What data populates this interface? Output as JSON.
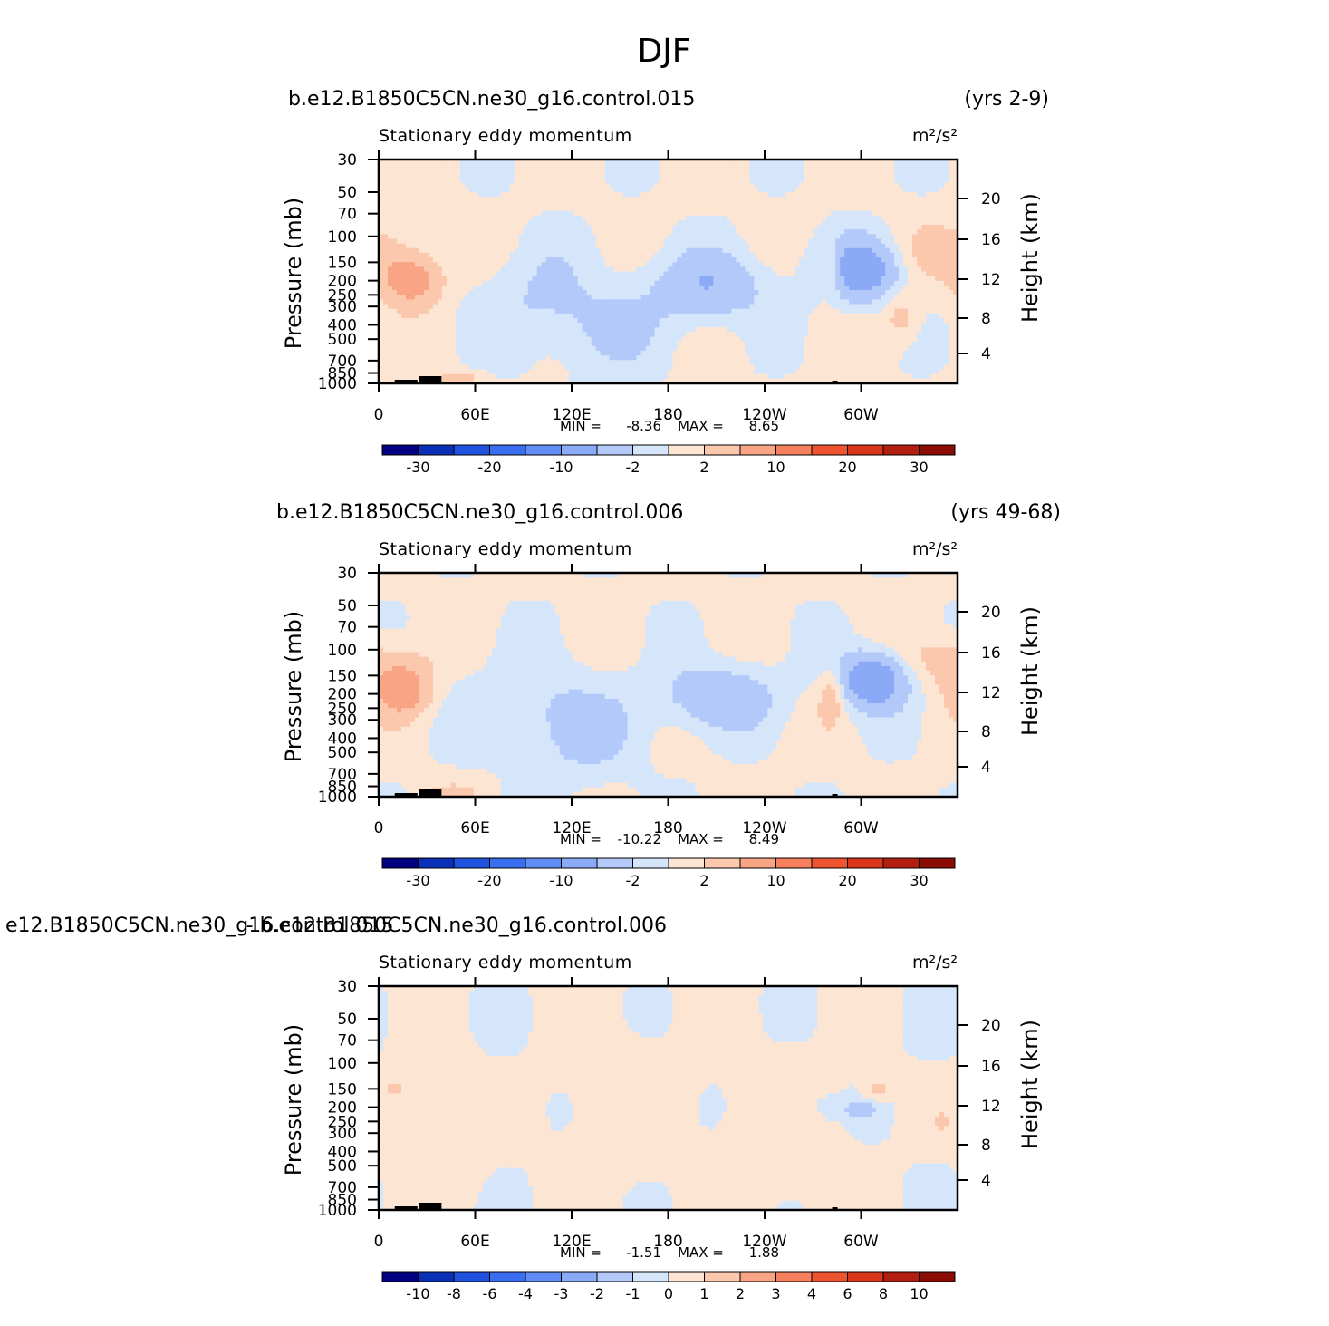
{
  "page": {
    "title": "DJF"
  },
  "palettes": {
    "full": [
      "#000080",
      "#0a2fb8",
      "#1f52df",
      "#3a6ef0",
      "#5f8cf5",
      "#8aaaf7",
      "#b3c9fa",
      "#d6e6fa",
      "#fde5d3",
      "#fbc8ad",
      "#f8a485",
      "#f6805e",
      "#ef5431",
      "#d9361a",
      "#b21e0f",
      "#8a0c05"
    ],
    "pos": [
      "#fde5d3",
      "#f9c2a5",
      "#f4a085"
    ],
    "neg": [
      "#d6e6fa",
      "#b3c9fa",
      "#8aaaf7",
      "#5f8cf5"
    ]
  },
  "chart_data": [
    {
      "type": "heatmap",
      "case_title": "b.e12.B1850C5CN.ne30_g16.control.015",
      "years": "(yrs 2-9)",
      "variable": "Stationary eddy momentum",
      "units": "m²/s²",
      "ylabel": "Pressure (mb)",
      "y2label": "Height (km)",
      "x_ticks": [
        "0",
        "60E",
        "120E",
        "180",
        "120W",
        "60W"
      ],
      "y_ticks": [
        "30",
        "50",
        "70",
        "100",
        "150",
        "200",
        "250",
        "300",
        "400",
        "500",
        "700",
        "850",
        "1000"
      ],
      "y2_ticks": [
        "20",
        "16",
        "12",
        "8",
        "4"
      ],
      "stats": {
        "min_label": "MIN =",
        "min": "-8.36",
        "max_label": "MAX =",
        "max": "8.65"
      },
      "colorbar_labels": [
        "-30",
        "-20",
        "-10",
        "-2",
        "2",
        "10",
        "20",
        "30"
      ],
      "features": [
        {
          "lon": 20,
          "p": 200,
          "v": 7,
          "slon": 13,
          "sp": 0.28
        },
        {
          "lon": 355,
          "p": 130,
          "v": 3,
          "slon": 22,
          "sp": 0.3
        },
        {
          "lon": 205,
          "p": 220,
          "v": -5,
          "slon": 26,
          "sp": 0.38
        },
        {
          "lon": 300,
          "p": 170,
          "v": -8,
          "slon": 18,
          "sp": 0.35
        },
        {
          "lon": 280,
          "p": 170,
          "v": 4,
          "slon": 6,
          "sp": 0.3
        },
        {
          "lon": 100,
          "p": 250,
          "v": -2.2,
          "slon": 28,
          "sp": 0.55
        },
        {
          "lon": 140,
          "p": 450,
          "v": -2.3,
          "slon": 30,
          "sp": 0.5
        },
        {
          "lon": 325,
          "p": 350,
          "v": 3,
          "slon": 8,
          "sp": 0.3
        },
        {
          "lon": 50,
          "p": 920,
          "v": 3,
          "slon": 10,
          "sp": 0.08
        }
      ]
    },
    {
      "type": "heatmap",
      "case_title": "b.e12.B1850C5CN.ne30_g16.control.006",
      "years": "(yrs 49-68)",
      "variable": "Stationary eddy momentum",
      "units": "m²/s²",
      "ylabel": "Pressure (mb)",
      "y2label": "Height (km)",
      "x_ticks": [
        "0",
        "60E",
        "120E",
        "180",
        "120W",
        "60W"
      ],
      "y_ticks": [
        "30",
        "50",
        "70",
        "100",
        "150",
        "200",
        "250",
        "300",
        "400",
        "500",
        "700",
        "850",
        "1000"
      ],
      "y2_ticks": [
        "20",
        "16",
        "12",
        "8",
        "4"
      ],
      "stats": {
        "min_label": "MIN =",
        "min": "-10.22",
        "max_label": "MAX =",
        "max": "8.49"
      },
      "colorbar_labels": [
        "-30",
        "-20",
        "-10",
        "-2",
        "2",
        "10",
        "20",
        "30"
      ],
      "features": [
        {
          "lon": 15,
          "p": 190,
          "v": 7,
          "slon": 12,
          "sp": 0.28
        },
        {
          "lon": 355,
          "p": 120,
          "v": 3,
          "slon": 22,
          "sp": 0.3
        },
        {
          "lon": 210,
          "p": 210,
          "v": -5,
          "slon": 26,
          "sp": 0.35
        },
        {
          "lon": 307,
          "p": 160,
          "v": -9,
          "slon": 16,
          "sp": 0.32
        },
        {
          "lon": 282,
          "p": 200,
          "v": 4,
          "slon": 6,
          "sp": 0.3
        },
        {
          "lon": 95,
          "p": 250,
          "v": -2.2,
          "slon": 30,
          "sp": 0.55
        },
        {
          "lon": 130,
          "p": 400,
          "v": -2.3,
          "slon": 26,
          "sp": 0.55
        },
        {
          "lon": 45,
          "p": 930,
          "v": 3,
          "slon": 10,
          "sp": 0.08
        }
      ]
    },
    {
      "type": "heatmap",
      "case_title": "e12.B1850C5CN.ne30_g16.control.015",
      "years": "- b.e12.B1850C5CN.ne30_g16.control.006",
      "variable": "Stationary eddy momentum",
      "units": "m²/s²",
      "ylabel": "Pressure (mb)",
      "y2label": "Height (km)",
      "x_ticks": [
        "0",
        "60E",
        "120E",
        "180",
        "120W",
        "60W"
      ],
      "y_ticks": [
        "30",
        "50",
        "70",
        "100",
        "150",
        "200",
        "250",
        "300",
        "400",
        "500",
        "700",
        "850",
        "1000"
      ],
      "y2_ticks": [
        "20",
        "16",
        "12",
        "8",
        "4"
      ],
      "stats": {
        "min_label": "MIN =",
        "min": "-1.51",
        "max_label": "MAX =",
        "max": "1.88"
      },
      "colorbar_labels": [
        "-10",
        "-8",
        "-6",
        "-4",
        "-3",
        "-2",
        "-1",
        "0",
        "1",
        "2",
        "3",
        "4",
        "6",
        "8",
        "10"
      ],
      "features": [
        {
          "lon": 300,
          "p": 210,
          "v": -1.5,
          "slon": 8,
          "sp": 0.12
        },
        {
          "lon": 310,
          "p": 150,
          "v": 1.5,
          "slon": 6,
          "sp": 0.12
        },
        {
          "lon": 280,
          "p": 200,
          "v": -1.2,
          "slon": 6,
          "sp": 0.12
        },
        {
          "lon": 10,
          "p": 150,
          "v": 1.2,
          "slon": 4,
          "sp": 0.1
        },
        {
          "lon": 350,
          "p": 250,
          "v": 1.2,
          "slon": 4,
          "sp": 0.1
        },
        {
          "lon": 40,
          "p": 300,
          "v": 0.6,
          "slon": 20,
          "sp": 0.8
        },
        {
          "lon": 150,
          "p": 200,
          "v": 0.6,
          "slon": 25,
          "sp": 0.9
        },
        {
          "lon": 250,
          "p": 300,
          "v": 0.6,
          "slon": 28,
          "sp": 0.9
        }
      ]
    }
  ]
}
